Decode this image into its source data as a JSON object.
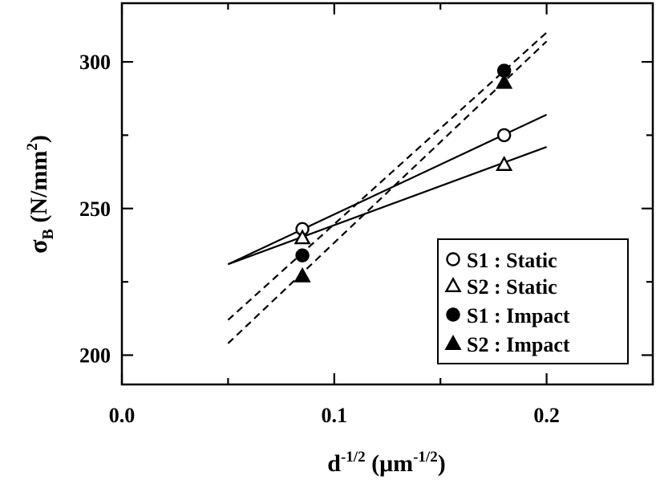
{
  "chart_data": {
    "type": "scatter",
    "title": "",
    "xlabel": {
      "base": "d",
      "sup": "-1/2",
      "unit_open": " (μm",
      "unit_sup": "-1/2",
      "unit_close": ")"
    },
    "ylabel": {
      "base": "σ",
      "sub": "B",
      "unit_open": " (N/mm",
      "unit_sup": "2",
      "unit_close": ")"
    },
    "xlim": [
      0.0,
      0.25
    ],
    "ylim": [
      190,
      320
    ],
    "xticks_major": [
      0.0,
      0.1,
      0.2
    ],
    "xtick_labels": [
      "0.0",
      "0.1",
      "0.2"
    ],
    "xticks_minor": [
      0.05,
      0.15,
      0.25
    ],
    "yticks_major": [
      200,
      250,
      300
    ],
    "ytick_labels": [
      "200",
      "250",
      "300"
    ],
    "yticks_minor": [
      225,
      275
    ],
    "grid": false,
    "legend_position": "lower-right",
    "series": [
      {
        "name": "S1 : Static",
        "marker": "open-circle",
        "x": [
          0.085,
          0.18
        ],
        "y": [
          243,
          275
        ],
        "fit": {
          "x": [
            0.05,
            0.2
          ],
          "y": [
            231,
            282
          ],
          "style": "solid"
        }
      },
      {
        "name": "S2 : Static",
        "marker": "open-triangle",
        "x": [
          0.085,
          0.18
        ],
        "y": [
          240,
          265
        ],
        "fit": {
          "x": [
            0.05,
            0.2
          ],
          "y": [
            231,
            271
          ],
          "style": "solid"
        }
      },
      {
        "name": "S1 : Impact",
        "marker": "filled-circle",
        "x": [
          0.085,
          0.18
        ],
        "y": [
          234,
          297
        ],
        "fit": {
          "x": [
            0.05,
            0.2
          ],
          "y": [
            212,
            310
          ],
          "style": "dashed"
        }
      },
      {
        "name": "S2 : Impact",
        "marker": "filled-triangle",
        "x": [
          0.085,
          0.18
        ],
        "y": [
          227,
          293
        ],
        "fit": {
          "x": [
            0.05,
            0.2
          ],
          "y": [
            204,
            307
          ],
          "style": "dashed"
        }
      }
    ]
  }
}
